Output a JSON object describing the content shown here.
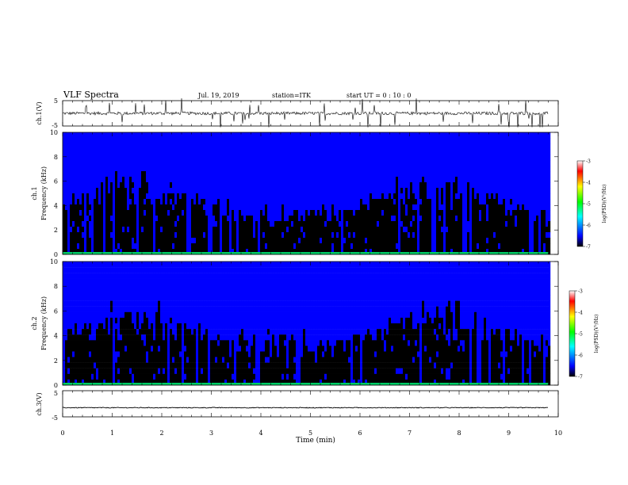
{
  "header": {
    "title": "VLF Spectra",
    "date": "Jul. 19, 2019",
    "station": "station=ITK",
    "start_ut": "start UT =  0 : 10 : 0"
  },
  "chart_data": [
    {
      "type": "line",
      "panel": "ch1-waveform",
      "ylabel": "ch.1(V)",
      "yticks": [
        "5",
        "-5"
      ],
      "ylim": [
        -5,
        5
      ],
      "xlim": [
        0,
        10
      ],
      "data_end_min": 9.8,
      "baseline": 0,
      "line_color": "#000000"
    },
    {
      "type": "heatmap",
      "panel": "ch1-spectrogram",
      "ylabel_top": "ch.1",
      "ylabel": "Frequency (kHz)",
      "yticks": [
        "0",
        "2",
        "4",
        "6",
        "8",
        "10"
      ],
      "ylim": [
        0,
        10
      ],
      "xlim": [
        0,
        10
      ],
      "data_end_min": 9.8,
      "colorbar": {
        "label": "log(PSD)(V²/Hz)",
        "ticks": [
          "-3",
          "-4",
          "-5",
          "-6",
          "-7"
        ],
        "range": [
          -7,
          -3
        ],
        "colors": [
          "#000000",
          "#0000ff",
          "#00ffff",
          "#00ff00",
          "#ffff00",
          "#ff0000",
          "#ffffff"
        ]
      }
    },
    {
      "type": "heatmap",
      "panel": "ch2-spectrogram",
      "ylabel_top": "ch.2",
      "ylabel": "Frequency (kHz)",
      "yticks": [
        "0",
        "2",
        "4",
        "6",
        "8",
        "10"
      ],
      "ylim": [
        0,
        10
      ],
      "xlim": [
        0,
        10
      ],
      "data_end_min": 9.8,
      "colorbar": {
        "label": "log(PSD)(V²/Hz)",
        "ticks": [
          "-3",
          "-4",
          "-5",
          "-6",
          "-7"
        ],
        "range": [
          -7,
          -3
        ],
        "colors": [
          "#000000",
          "#0000ff",
          "#00ffff",
          "#00ff00",
          "#ffff00",
          "#ff0000",
          "#ffffff"
        ]
      }
    },
    {
      "type": "line",
      "panel": "ch3-waveform",
      "ylabel": "ch.3(V)",
      "yticks": [
        "5",
        "-5"
      ],
      "ylim": [
        -5,
        5
      ],
      "xlim": [
        0,
        10
      ],
      "data_end_min": 9.8,
      "baseline": -1.5,
      "line_color": "#000000"
    }
  ],
  "xaxis": {
    "label": "Time (min)",
    "ticks": [
      "0",
      "1",
      "2",
      "3",
      "4",
      "5",
      "6",
      "7",
      "8",
      "9",
      "10"
    ]
  }
}
